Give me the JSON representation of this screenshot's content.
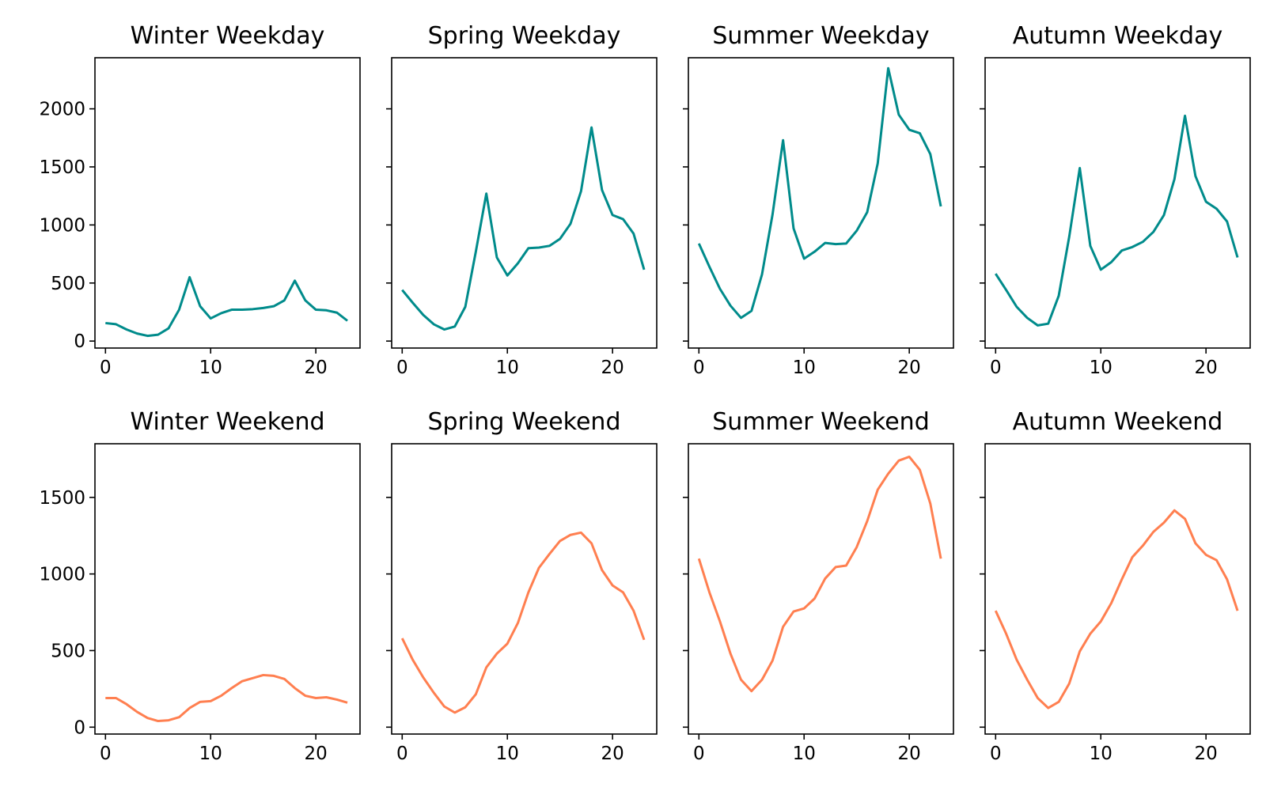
{
  "figure": {
    "rows": [
      "weekday",
      "weekend"
    ]
  },
  "chart_data": [
    {
      "type": "line",
      "title": "Winter Weekday",
      "row": 0,
      "col": 0,
      "color": "#008b8b",
      "x": [
        0,
        1,
        2,
        3,
        4,
        5,
        6,
        7,
        8,
        9,
        10,
        11,
        12,
        13,
        14,
        15,
        16,
        17,
        18,
        19,
        20,
        21,
        22,
        23
      ],
      "y": [
        155,
        145,
        100,
        65,
        45,
        55,
        110,
        270,
        550,
        300,
        195,
        240,
        270,
        270,
        275,
        285,
        300,
        350,
        520,
        350,
        270,
        265,
        245,
        175
      ],
      "xlim": [
        -1,
        24.2
      ],
      "xticks": [
        0,
        10,
        20
      ],
      "ylim": [
        -60,
        2440
      ],
      "yticks": [
        0,
        500,
        1000,
        1500,
        2000
      ],
      "show_ytick_labels": true
    },
    {
      "type": "line",
      "title": "Spring Weekday",
      "row": 0,
      "col": 1,
      "color": "#008b8b",
      "x": [
        0,
        1,
        2,
        3,
        4,
        5,
        6,
        7,
        8,
        9,
        10,
        11,
        12,
        13,
        14,
        15,
        16,
        17,
        18,
        19,
        20,
        21,
        22,
        23
      ],
      "y": [
        440,
        330,
        225,
        145,
        100,
        125,
        295,
        770,
        1270,
        720,
        565,
        670,
        800,
        805,
        820,
        880,
        1010,
        1290,
        1840,
        1300,
        1085,
        1050,
        925,
        615
      ],
      "xlim": [
        -1,
        24.2
      ],
      "xticks": [
        0,
        10,
        20
      ],
      "ylim": [
        -60,
        2440
      ],
      "yticks": [
        0,
        500,
        1000,
        1500,
        2000
      ],
      "show_ytick_labels": false
    },
    {
      "type": "line",
      "title": "Summer Weekday",
      "row": 0,
      "col": 2,
      "color": "#008b8b",
      "x": [
        0,
        1,
        2,
        3,
        4,
        5,
        6,
        7,
        8,
        9,
        10,
        11,
        12,
        13,
        14,
        15,
        16,
        17,
        18,
        19,
        20,
        21,
        22,
        23
      ],
      "y": [
        840,
        640,
        450,
        305,
        200,
        260,
        575,
        1090,
        1730,
        970,
        710,
        770,
        845,
        835,
        840,
        950,
        1110,
        1530,
        2350,
        1950,
        1820,
        1790,
        1610,
        1160
      ],
      "xlim": [
        -1,
        24.2
      ],
      "xticks": [
        0,
        10,
        20
      ],
      "ylim": [
        -60,
        2440
      ],
      "yticks": [
        0,
        500,
        1000,
        1500,
        2000
      ],
      "show_ytick_labels": false
    },
    {
      "type": "line",
      "title": "Autumn Weekday",
      "row": 0,
      "col": 3,
      "color": "#008b8b",
      "x": [
        0,
        1,
        2,
        3,
        4,
        5,
        6,
        7,
        8,
        9,
        10,
        11,
        12,
        13,
        14,
        15,
        16,
        17,
        18,
        19,
        20,
        21,
        22,
        23
      ],
      "y": [
        580,
        440,
        295,
        200,
        135,
        150,
        390,
        900,
        1490,
        820,
        615,
        680,
        780,
        810,
        855,
        940,
        1085,
        1395,
        1940,
        1420,
        1200,
        1140,
        1030,
        720
      ],
      "xlim": [
        -1,
        24.2
      ],
      "xticks": [
        0,
        10,
        20
      ],
      "ylim": [
        -60,
        2440
      ],
      "yticks": [
        0,
        500,
        1000,
        1500,
        2000
      ],
      "show_ytick_labels": false
    },
    {
      "type": "line",
      "title": "Winter Weekend",
      "row": 1,
      "col": 0,
      "color": "#ff7f50",
      "x": [
        0,
        1,
        2,
        3,
        4,
        5,
        6,
        7,
        8,
        9,
        10,
        11,
        12,
        13,
        14,
        15,
        16,
        17,
        18,
        19,
        20,
        21,
        22,
        23
      ],
      "y": [
        190,
        190,
        150,
        100,
        60,
        40,
        45,
        65,
        125,
        165,
        170,
        205,
        255,
        300,
        320,
        340,
        335,
        315,
        255,
        205,
        190,
        195,
        180,
        160
      ],
      "xlim": [
        -1,
        24.2
      ],
      "xticks": [
        0,
        10,
        20
      ],
      "ylim": [
        -45,
        1850
      ],
      "yticks": [
        0,
        500,
        1000,
        1500
      ],
      "show_ytick_labels": true
    },
    {
      "type": "line",
      "title": "Spring Weekend",
      "row": 1,
      "col": 1,
      "color": "#ff7f50",
      "x": [
        0,
        1,
        2,
        3,
        4,
        5,
        6,
        7,
        8,
        9,
        10,
        11,
        12,
        13,
        14,
        15,
        16,
        17,
        18,
        19,
        20,
        21,
        22,
        23
      ],
      "y": [
        580,
        440,
        325,
        225,
        135,
        95,
        130,
        215,
        390,
        480,
        545,
        680,
        880,
        1040,
        1130,
        1215,
        1255,
        1270,
        1200,
        1025,
        925,
        880,
        760,
        570
      ],
      "xlim": [
        -1,
        24.2
      ],
      "xticks": [
        0,
        10,
        20
      ],
      "ylim": [
        -45,
        1850
      ],
      "yticks": [
        0,
        500,
        1000,
        1500
      ],
      "show_ytick_labels": false
    },
    {
      "type": "line",
      "title": "Summer Weekend",
      "row": 1,
      "col": 2,
      "color": "#ff7f50",
      "x": [
        0,
        1,
        2,
        3,
        4,
        5,
        6,
        7,
        8,
        9,
        10,
        11,
        12,
        13,
        14,
        15,
        16,
        17,
        18,
        19,
        20,
        21,
        22,
        23
      ],
      "y": [
        1100,
        880,
        690,
        480,
        310,
        235,
        310,
        435,
        655,
        755,
        775,
        840,
        970,
        1045,
        1055,
        1175,
        1345,
        1550,
        1655,
        1740,
        1765,
        1680,
        1460,
        1100
      ],
      "xlim": [
        -1,
        24.2
      ],
      "xticks": [
        0,
        10,
        20
      ],
      "ylim": [
        -45,
        1850
      ],
      "yticks": [
        0,
        500,
        1000,
        1500
      ],
      "show_ytick_labels": false
    },
    {
      "type": "line",
      "title": "Autumn Weekend",
      "row": 1,
      "col": 3,
      "color": "#ff7f50",
      "x": [
        0,
        1,
        2,
        3,
        4,
        5,
        6,
        7,
        8,
        9,
        10,
        11,
        12,
        13,
        14,
        15,
        16,
        17,
        18,
        19,
        20,
        21,
        22,
        23
      ],
      "y": [
        760,
        610,
        440,
        310,
        190,
        125,
        165,
        285,
        495,
        610,
        690,
        810,
        965,
        1110,
        1185,
        1275,
        1335,
        1415,
        1360,
        1200,
        1125,
        1090,
        965,
        760
      ],
      "xlim": [
        -1,
        24.2
      ],
      "xticks": [
        0,
        10,
        20
      ],
      "ylim": [
        -45,
        1850
      ],
      "yticks": [
        0,
        500,
        1000,
        1500
      ],
      "show_ytick_labels": false
    }
  ]
}
